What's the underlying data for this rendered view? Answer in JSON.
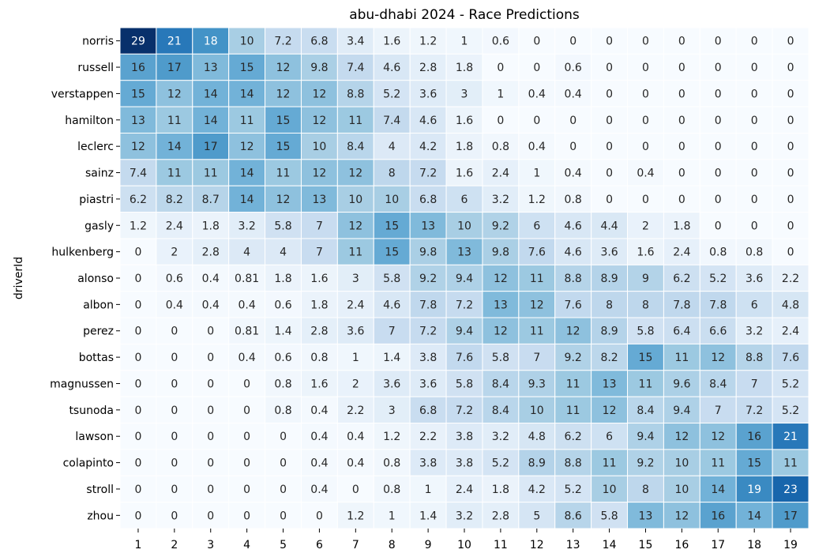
{
  "chart_data": {
    "type": "heatmap",
    "title": "abu-dhabi 2024 - Race Predictions",
    "xlabel": "",
    "ylabel": "driverId",
    "x_categories": [
      "1",
      "2",
      "3",
      "4",
      "5",
      "6",
      "7",
      "8",
      "9",
      "10",
      "11",
      "12",
      "13",
      "14",
      "15",
      "16",
      "17",
      "18",
      "19"
    ],
    "y_categories": [
      "norris",
      "russell",
      "verstappen",
      "hamilton",
      "leclerc",
      "sainz",
      "piastri",
      "gasly",
      "hulkenberg",
      "alonso",
      "albon",
      "perez",
      "bottas",
      "magnussen",
      "tsunoda",
      "lawson",
      "colapinto",
      "stroll",
      "zhou"
    ],
    "values": [
      [
        "29",
        "21",
        "18",
        "10",
        "7.2",
        "6.8",
        "3.4",
        "1.6",
        "1.2",
        "1",
        "0.6",
        "0",
        "0",
        "0",
        "0",
        "0",
        "0",
        "0",
        "0"
      ],
      [
        "16",
        "17",
        "13",
        "15",
        "12",
        "9.8",
        "7.4",
        "4.6",
        "2.8",
        "1.8",
        "0",
        "0",
        "0.6",
        "0",
        "0",
        "0",
        "0",
        "0",
        "0"
      ],
      [
        "15",
        "12",
        "14",
        "14",
        "12",
        "12",
        "8.8",
        "5.2",
        "3.6",
        "3",
        "1",
        "0.4",
        "0.4",
        "0",
        "0",
        "0",
        "0",
        "0",
        "0"
      ],
      [
        "13",
        "11",
        "14",
        "11",
        "15",
        "12",
        "11",
        "7.4",
        "4.6",
        "1.6",
        "0",
        "0",
        "0",
        "0",
        "0",
        "0",
        "0",
        "0",
        "0"
      ],
      [
        "12",
        "14",
        "17",
        "12",
        "15",
        "10",
        "8.4",
        "4",
        "4.2",
        "1.8",
        "0.8",
        "0.4",
        "0",
        "0",
        "0",
        "0",
        "0",
        "0",
        "0"
      ],
      [
        "7.4",
        "11",
        "11",
        "14",
        "11",
        "12",
        "12",
        "8",
        "7.2",
        "1.6",
        "2.4",
        "1",
        "0.4",
        "0",
        "0.4",
        "0",
        "0",
        "0",
        "0"
      ],
      [
        "6.2",
        "8.2",
        "8.7",
        "14",
        "12",
        "13",
        "10",
        "10",
        "6.8",
        "6",
        "3.2",
        "1.2",
        "0.8",
        "0",
        "0",
        "0",
        "0",
        "0",
        "0"
      ],
      [
        "1.2",
        "2.4",
        "1.8",
        "3.2",
        "5.8",
        "7",
        "12",
        "15",
        "13",
        "10",
        "9.2",
        "6",
        "4.6",
        "4.4",
        "2",
        "1.8",
        "0",
        "0",
        "0"
      ],
      [
        "0",
        "2",
        "2.8",
        "4",
        "4",
        "7",
        "11",
        "15",
        "9.8",
        "13",
        "9.8",
        "7.6",
        "4.6",
        "3.6",
        "1.6",
        "2.4",
        "0.8",
        "0.8",
        "0"
      ],
      [
        "0",
        "0.6",
        "0.4",
        "0.81",
        "1.8",
        "1.6",
        "3",
        "5.8",
        "9.2",
        "9.4",
        "12",
        "11",
        "8.8",
        "8.9",
        "9",
        "6.2",
        "5.2",
        "3.6",
        "2.2"
      ],
      [
        "0",
        "0.4",
        "0.4",
        "0.4",
        "0.6",
        "1.8",
        "2.4",
        "4.6",
        "7.8",
        "7.2",
        "13",
        "12",
        "7.6",
        "8",
        "8",
        "7.8",
        "7.8",
        "6",
        "4.8"
      ],
      [
        "0",
        "0",
        "0",
        "0.81",
        "1.4",
        "2.8",
        "3.6",
        "7",
        "7.2",
        "9.4",
        "12",
        "11",
        "12",
        "8.9",
        "5.8",
        "6.4",
        "6.6",
        "3.2",
        "2.4"
      ],
      [
        "0",
        "0",
        "0",
        "0.4",
        "0.6",
        "0.8",
        "1",
        "1.4",
        "3.8",
        "7.6",
        "5.8",
        "7",
        "9.2",
        "8.2",
        "15",
        "11",
        "12",
        "8.8",
        "7.6"
      ],
      [
        "0",
        "0",
        "0",
        "0",
        "0.8",
        "1.6",
        "2",
        "3.6",
        "3.6",
        "5.8",
        "8.4",
        "9.3",
        "11",
        "13",
        "11",
        "9.6",
        "8.4",
        "7",
        "5.2"
      ],
      [
        "0",
        "0",
        "0",
        "0",
        "0.8",
        "0.4",
        "2.2",
        "3",
        "6.8",
        "7.2",
        "8.4",
        "10",
        "11",
        "12",
        "8.4",
        "9.4",
        "7",
        "7.2",
        "5.2"
      ],
      [
        "0",
        "0",
        "0",
        "0",
        "0",
        "0.4",
        "0.4",
        "1.2",
        "2.2",
        "3.8",
        "3.2",
        "4.8",
        "6.2",
        "6",
        "9.4",
        "12",
        "12",
        "16",
        "21"
      ],
      [
        "0",
        "0",
        "0",
        "0",
        "0",
        "0.4",
        "0.4",
        "0.8",
        "3.8",
        "3.8",
        "5.2",
        "8.9",
        "8.8",
        "11",
        "9.2",
        "10",
        "11",
        "15",
        "11"
      ],
      [
        "0",
        "0",
        "0",
        "0",
        "0",
        "0.4",
        "0",
        "0.8",
        "1",
        "2.4",
        "1.8",
        "4.2",
        "5.2",
        "10",
        "8",
        "10",
        "14",
        "19",
        "23"
      ],
      [
        "0",
        "0",
        "0",
        "0",
        "0",
        "0",
        "1.2",
        "1",
        "1.4",
        "3.2",
        "2.8",
        "5",
        "8.6",
        "5.8",
        "13",
        "12",
        "16",
        "14",
        "17"
      ]
    ],
    "colormap": "Blues",
    "color_range": [
      0,
      29
    ],
    "cell_border_color": "#ffffff",
    "annotated": true,
    "colorbar": false
  }
}
